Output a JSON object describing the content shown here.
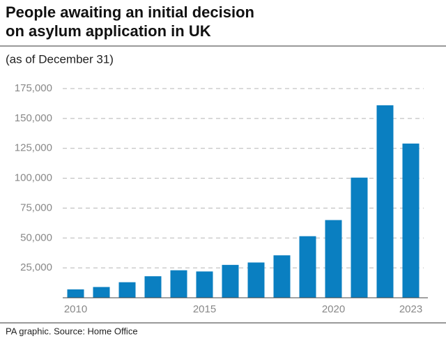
{
  "chart_data": {
    "type": "bar",
    "title": [
      "People awaiting an initial decision",
      "on asylum application in UK"
    ],
    "subtitle": "(as of December 31)",
    "source": "PA graphic. Source: Home Office",
    "categories": [
      "2010",
      null,
      null,
      null,
      null,
      "2015",
      null,
      null,
      null,
      null,
      "2020",
      null,
      null,
      "2023"
    ],
    "values": [
      7000,
      9000,
      13000,
      18000,
      23000,
      22000,
      27500,
      29500,
      35500,
      51500,
      65000,
      100500,
      161000,
      129000
    ],
    "color": "#0a7fc1",
    "ylim": [
      0,
      175000
    ],
    "yticks": [
      {
        "value": 25000,
        "label": "25,000"
      },
      {
        "value": 50000,
        "label": "50,000"
      },
      {
        "value": 75000,
        "label": "75,000"
      },
      {
        "value": 100000,
        "label": "100,000"
      },
      {
        "value": 125000,
        "label": "125,000"
      },
      {
        "value": 150000,
        "label": "150,000"
      },
      {
        "value": 175000,
        "label": "175,000"
      }
    ],
    "grid": true
  }
}
